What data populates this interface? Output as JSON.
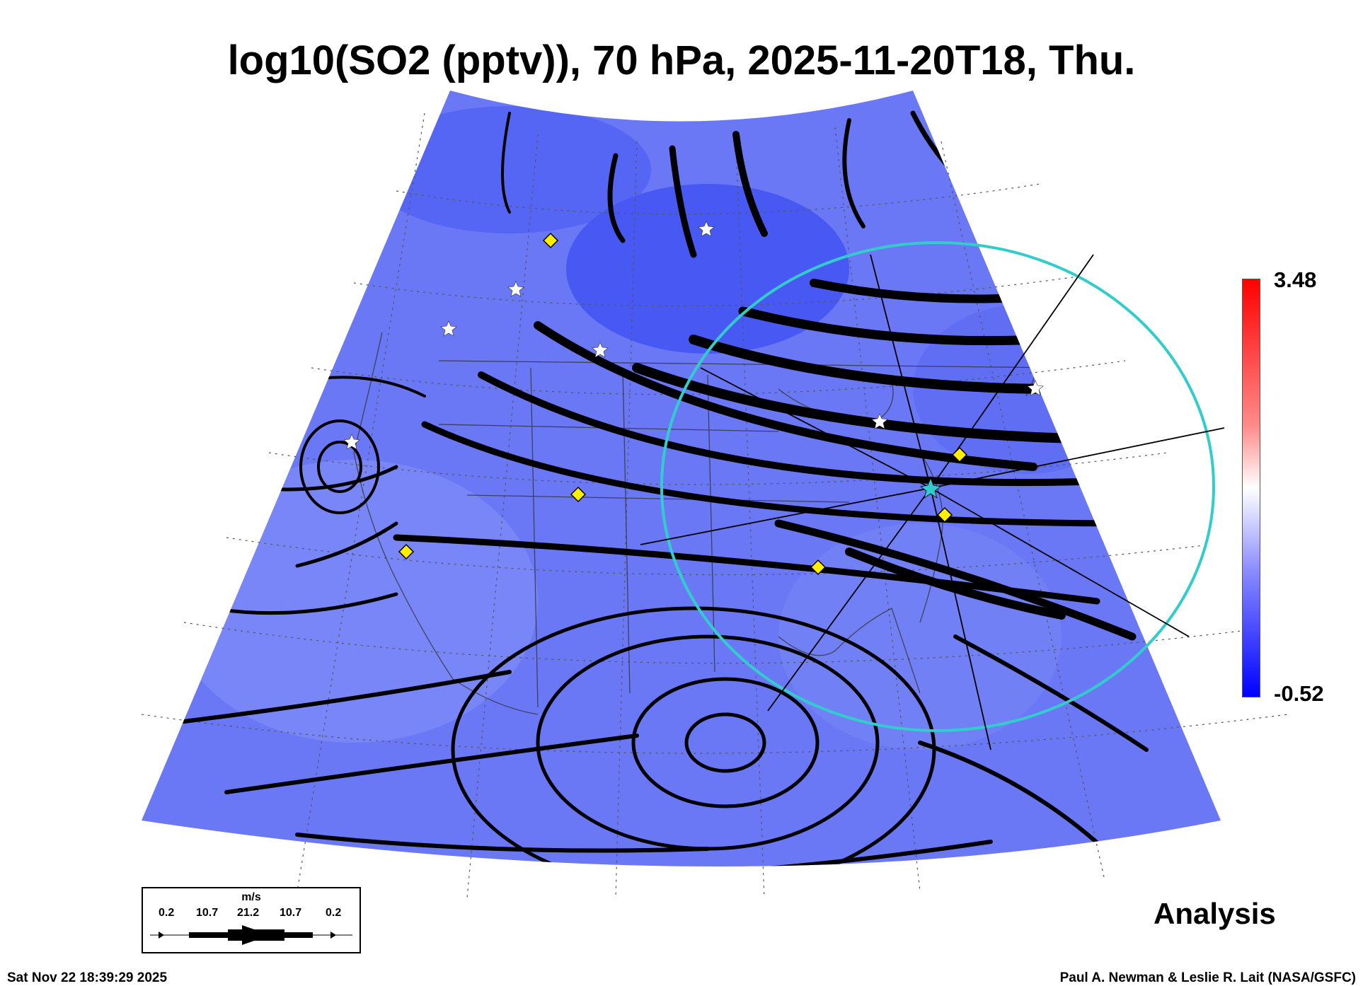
{
  "title": "log10(SO2 (pptv)), 70 hPa, 2025-11-20T18, Thu.",
  "colorbar": {
    "max_label": "3.48",
    "min_label": "-0.52",
    "colors": [
      "#0000ff",
      "#ffffff",
      "#ff0000"
    ]
  },
  "field_color": "#6a78f5",
  "analysis_label": "Analysis",
  "timestamp": "Sat Nov 22 18:39:29 2025",
  "credit": "Paul A. Newman & Leslie R. Lait (NASA/GSFC)",
  "wind_legend": {
    "unit": "m/s",
    "values": [
      "0.2",
      "10.7",
      "21.2",
      "10.7",
      "0.2"
    ]
  },
  "markers": {
    "diamond_color": "#ffee00",
    "star_color": "#ffffff",
    "range_ring_color": "#33cccc"
  }
}
